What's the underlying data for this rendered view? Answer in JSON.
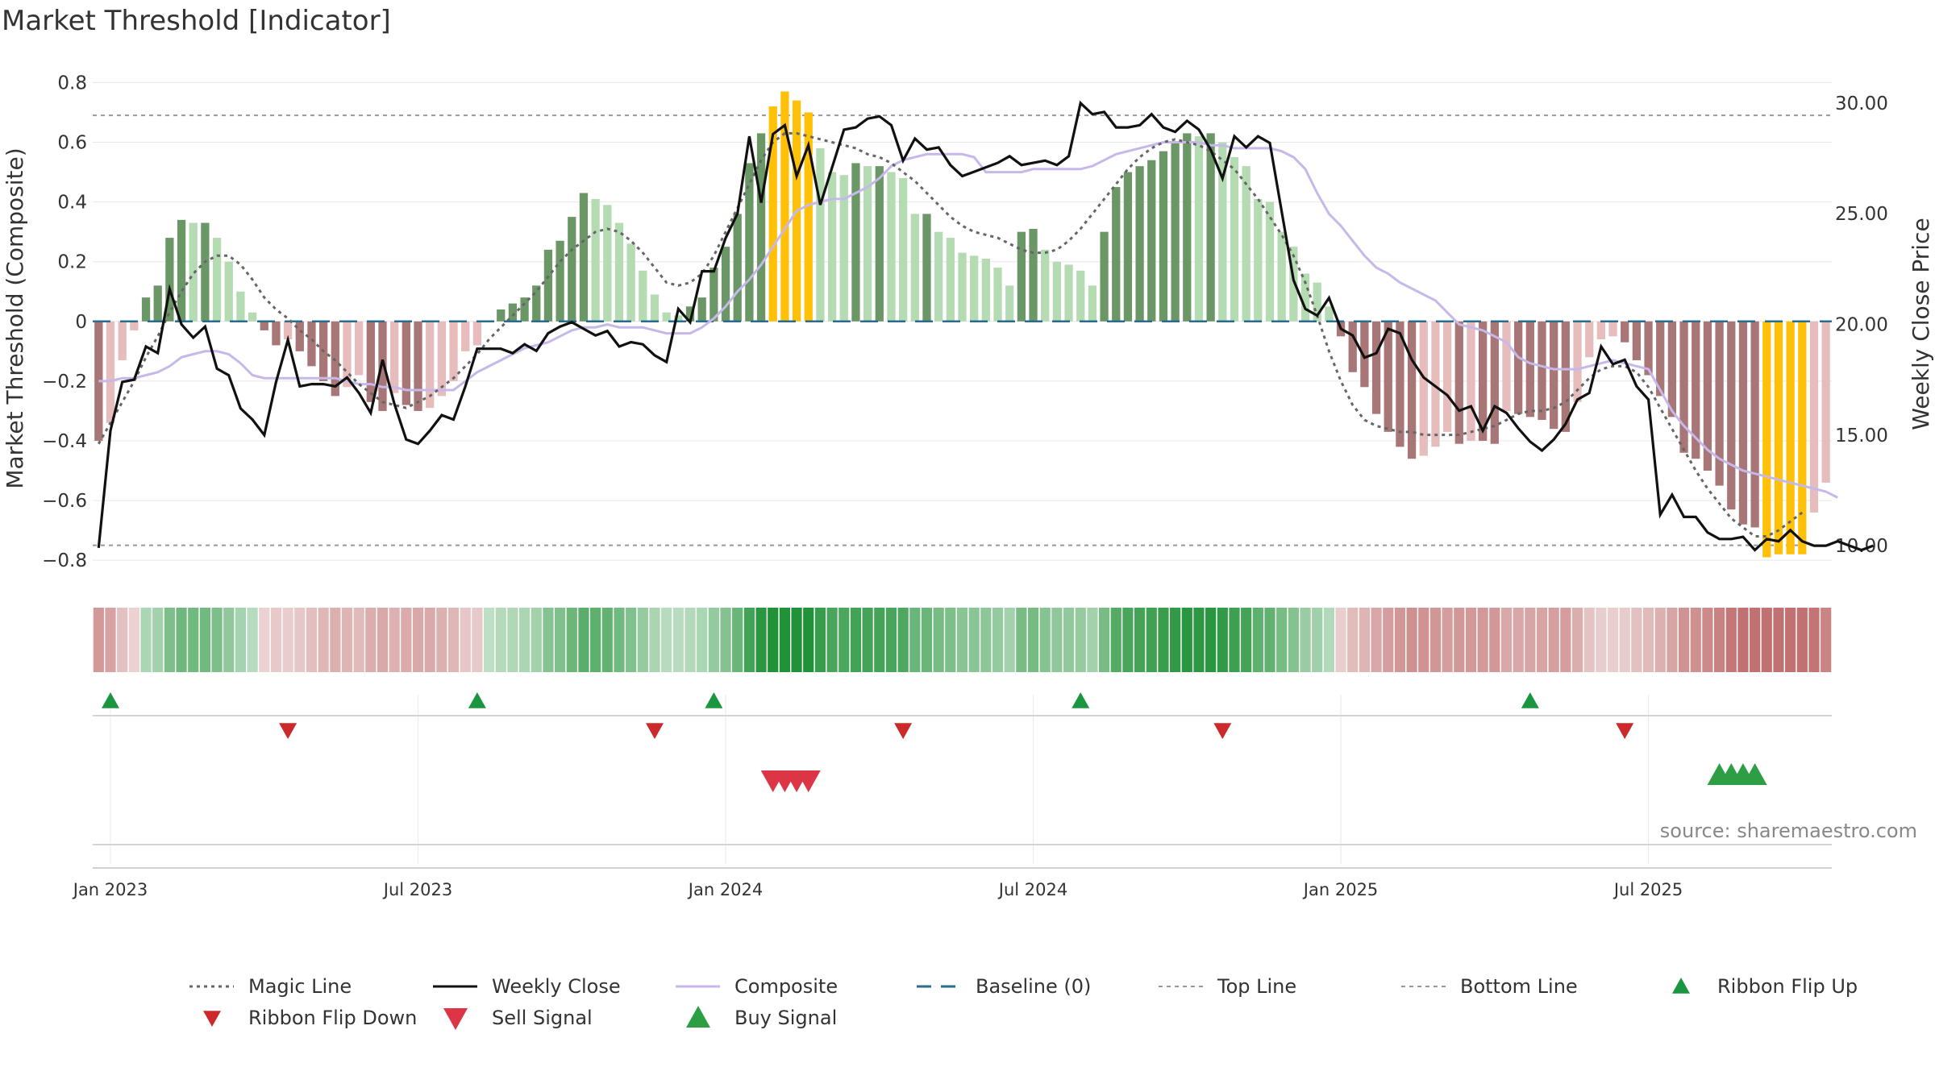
{
  "chart_data": {
    "type": "bar",
    "title": "Market Threshold [Indicator]",
    "ylabel": "Market Threshold (Composite)",
    "y2label": "Weekly Close Price",
    "source": "source: sharemaestro.com",
    "ylim": [
      -0.84,
      0.82
    ],
    "y2lim": [
      8.8,
      31.2
    ],
    "yticks": [
      {
        "v": 0.8,
        "label": "0.8"
      },
      {
        "v": 0.6,
        "label": "0.6"
      },
      {
        "v": 0.4,
        "label": "0.4"
      },
      {
        "v": 0.2,
        "label": "0.2"
      },
      {
        "v": 0,
        "label": "0"
      },
      {
        "v": -0.2,
        "label": "−0.2"
      },
      {
        "v": -0.4,
        "label": "−0.4"
      },
      {
        "v": -0.6,
        "label": "−0.6"
      },
      {
        "v": -0.8,
        "label": "−0.8"
      }
    ],
    "y2ticks": [
      {
        "v": 30,
        "label": "30.00"
      },
      {
        "v": 25,
        "label": "25.00"
      },
      {
        "v": 20,
        "label": "20.00"
      },
      {
        "v": 15,
        "label": "15.00"
      },
      {
        "v": 10,
        "label": "10.00"
      }
    ],
    "xticks": [
      {
        "i": 1,
        "label": "Jan 2023"
      },
      {
        "i": 27,
        "label": "Jul 2023"
      },
      {
        "i": 53,
        "label": "Jan 2024"
      },
      {
        "i": 79,
        "label": "Jul 2024"
      },
      {
        "i": 105,
        "label": "Jan 2025"
      },
      {
        "i": 131,
        "label": "Jul 2025"
      }
    ],
    "top_line": 0.69,
    "bottom_line": -0.75,
    "baseline": 0,
    "composite": [
      -0.4,
      -0.34,
      -0.13,
      -0.03,
      0.08,
      0.12,
      0.28,
      0.34,
      0.33,
      0.33,
      0.28,
      0.2,
      0.1,
      0.03,
      -0.03,
      -0.08,
      -0.06,
      -0.1,
      -0.15,
      -0.2,
      -0.25,
      -0.22,
      -0.18,
      -0.27,
      -0.3,
      -0.24,
      -0.28,
      -0.3,
      -0.29,
      -0.25,
      -0.2,
      -0.1,
      -0.08,
      0.0,
      0.04,
      0.06,
      0.08,
      0.12,
      0.24,
      0.27,
      0.35,
      0.43,
      0.41,
      0.39,
      0.33,
      0.26,
      0.17,
      0.09,
      0.03,
      0.02,
      0.05,
      0.08,
      0.18,
      0.25,
      0.36,
      0.53,
      0.63,
      0.72,
      0.77,
      0.74,
      0.7,
      0.58,
      0.5,
      0.49,
      0.53,
      0.52,
      0.52,
      0.5,
      0.48,
      0.36,
      0.36,
      0.3,
      0.28,
      0.23,
      0.22,
      0.21,
      0.18,
      0.12,
      0.3,
      0.31,
      0.24,
      0.2,
      0.19,
      0.17,
      0.12,
      0.3,
      0.45,
      0.5,
      0.52,
      0.54,
      0.57,
      0.6,
      0.63,
      0.62,
      0.63,
      0.6,
      0.55,
      0.52,
      0.41,
      0.4,
      0.3,
      0.25,
      0.16,
      0.13,
      0.05,
      -0.05,
      -0.17,
      -0.22,
      -0.31,
      -0.37,
      -0.42,
      -0.46,
      -0.45,
      -0.42,
      -0.37,
      -0.41,
      -0.4,
      -0.4,
      -0.41,
      -0.3,
      -0.31,
      -0.32,
      -0.33,
      -0.36,
      -0.37,
      -0.27,
      -0.12,
      -0.06,
      -0.05,
      -0.07,
      -0.13,
      -0.18,
      -0.25,
      -0.32,
      -0.44,
      -0.46,
      -0.5,
      -0.55,
      -0.63,
      -0.68,
      -0.69,
      -0.79,
      -0.78,
      -0.78,
      -0.78,
      -0.64,
      -0.54
    ],
    "magic_line": [
      -0.41,
      -0.34,
      -0.27,
      -0.2,
      -0.12,
      -0.05,
      0.03,
      0.1,
      0.16,
      0.2,
      0.22,
      0.22,
      0.19,
      0.14,
      0.08,
      0.04,
      0.01,
      -0.03,
      -0.06,
      -0.1,
      -0.13,
      -0.17,
      -0.21,
      -0.24,
      -0.27,
      -0.28,
      -0.29,
      -0.27,
      -0.25,
      -0.22,
      -0.19,
      -0.15,
      -0.11,
      -0.06,
      -0.02,
      0.02,
      0.06,
      0.1,
      0.15,
      0.2,
      0.24,
      0.27,
      0.3,
      0.31,
      0.3,
      0.27,
      0.23,
      0.18,
      0.13,
      0.12,
      0.13,
      0.16,
      0.22,
      0.3,
      0.38,
      0.46,
      0.54,
      0.6,
      0.63,
      0.63,
      0.62,
      0.61,
      0.6,
      0.59,
      0.58,
      0.56,
      0.55,
      0.53,
      0.5,
      0.47,
      0.43,
      0.39,
      0.35,
      0.32,
      0.3,
      0.29,
      0.28,
      0.26,
      0.24,
      0.23,
      0.23,
      0.24,
      0.27,
      0.31,
      0.36,
      0.41,
      0.46,
      0.51,
      0.55,
      0.58,
      0.6,
      0.61,
      0.6,
      0.59,
      0.57,
      0.54,
      0.51,
      0.46,
      0.41,
      0.35,
      0.29,
      0.22,
      0.13,
      0.02,
      -0.1,
      -0.2,
      -0.28,
      -0.33,
      -0.35,
      -0.36,
      -0.37,
      -0.37,
      -0.38,
      -0.38,
      -0.38,
      -0.38,
      -0.37,
      -0.36,
      -0.35,
      -0.33,
      -0.31,
      -0.3,
      -0.3,
      -0.29,
      -0.27,
      -0.23,
      -0.19,
      -0.16,
      -0.15,
      -0.15,
      -0.17,
      -0.22,
      -0.29,
      -0.36,
      -0.43,
      -0.5,
      -0.56,
      -0.61,
      -0.66,
      -0.69,
      -0.72,
      -0.72,
      -0.7,
      -0.67,
      -0.64
    ],
    "composite_line": [
      -0.2,
      -0.2,
      -0.19,
      -0.19,
      -0.18,
      -0.17,
      -0.15,
      -0.12,
      -0.11,
      -0.1,
      -0.1,
      -0.11,
      -0.14,
      -0.18,
      -0.19,
      -0.19,
      -0.19,
      -0.19,
      -0.19,
      -0.19,
      -0.19,
      -0.2,
      -0.21,
      -0.21,
      -0.22,
      -0.22,
      -0.23,
      -0.23,
      -0.23,
      -0.23,
      -0.23,
      -0.2,
      -0.17,
      -0.15,
      -0.13,
      -0.11,
      -0.09,
      -0.08,
      -0.07,
      -0.05,
      -0.03,
      -0.02,
      -0.02,
      -0.01,
      -0.02,
      -0.02,
      -0.02,
      -0.03,
      -0.04,
      -0.04,
      -0.04,
      -0.02,
      0.01,
      0.05,
      0.1,
      0.14,
      0.19,
      0.25,
      0.31,
      0.37,
      0.39,
      0.4,
      0.41,
      0.41,
      0.43,
      0.45,
      0.48,
      0.52,
      0.54,
      0.55,
      0.56,
      0.56,
      0.56,
      0.56,
      0.55,
      0.5,
      0.5,
      0.5,
      0.5,
      0.51,
      0.51,
      0.51,
      0.51,
      0.51,
      0.52,
      0.54,
      0.56,
      0.57,
      0.58,
      0.59,
      0.6,
      0.6,
      0.6,
      0.6,
      0.59,
      0.59,
      0.58,
      0.58,
      0.58,
      0.58,
      0.57,
      0.55,
      0.51,
      0.43,
      0.36,
      0.32,
      0.27,
      0.22,
      0.18,
      0.16,
      0.13,
      0.11,
      0.09,
      0.07,
      0.03,
      -0.01,
      -0.02,
      -0.03,
      -0.05,
      -0.07,
      -0.12,
      -0.14,
      -0.15,
      -0.16,
      -0.16,
      -0.16,
      -0.15,
      -0.14,
      -0.13,
      -0.14,
      -0.15,
      -0.16,
      -0.23,
      -0.3,
      -0.35,
      -0.39,
      -0.43,
      -0.46,
      -0.48,
      -0.5,
      -0.51,
      -0.52,
      -0.53,
      -0.54,
      -0.55,
      -0.56,
      -0.57,
      -0.59
    ],
    "weekly_close": [
      9.9,
      15.2,
      17.4,
      17.5,
      19.0,
      18.7,
      21.6,
      20.0,
      19.4,
      19.9,
      18.0,
      17.7,
      16.2,
      15.7,
      15.0,
      17.4,
      19.3,
      17.2,
      17.3,
      17.3,
      17.2,
      17.6,
      16.9,
      16.0,
      18.4,
      16.4,
      14.8,
      14.6,
      15.2,
      15.9,
      15.7,
      17.2,
      18.9,
      18.9,
      18.9,
      18.7,
      19.1,
      18.8,
      19.6,
      19.9,
      20.1,
      19.8,
      19.5,
      19.7,
      19.0,
      19.2,
      19.1,
      18.6,
      18.3,
      20.7,
      20.1,
      22.4,
      22.4,
      23.9,
      25.0,
      28.5,
      25.5,
      28.6,
      29.0,
      26.7,
      28.1,
      25.4,
      27.1,
      28.8,
      28.9,
      29.3,
      29.4,
      29.0,
      27.4,
      28.4,
      27.9,
      28.0,
      27.2,
      26.7,
      26.9,
      27.1,
      27.3,
      27.6,
      27.2,
      27.3,
      27.4,
      27.2,
      27.6,
      30.0,
      29.5,
      29.6,
      28.9,
      28.9,
      29.0,
      29.5,
      28.9,
      28.7,
      29.2,
      28.8,
      27.9,
      26.6,
      28.5,
      28.0,
      28.5,
      28.2,
      25.1,
      22.0,
      20.7,
      20.4,
      21.2,
      19.8,
      19.5,
      18.5,
      18.7,
      19.8,
      19.6,
      18.4,
      17.6,
      17.2,
      16.8,
      16.1,
      16.3,
      15.2,
      16.3,
      16.0,
      15.3,
      14.7,
      14.3,
      14.8,
      15.5,
      16.6,
      16.9,
      19.0,
      18.2,
      18.4,
      17.2,
      16.6,
      11.4,
      12.3,
      11.3,
      11.3,
      10.6,
      10.3,
      10.3,
      10.4,
      9.8,
      10.3,
      10.2,
      10.7,
      10.2,
      10.0,
      10.0,
      10.2,
      10.0,
      9.8,
      10.0
    ],
    "ribbon_flip_up": [
      1,
      32,
      52,
      83,
      121
    ],
    "ribbon_flip_down": [
      16,
      47,
      68,
      95,
      129
    ],
    "sell_signal": [
      57,
      58,
      59,
      60
    ],
    "buy_signal": [
      137,
      138,
      139,
      140
    ],
    "legend": [
      "Magic Line",
      "Weekly Close",
      "Composite",
      "Baseline (0)",
      "Top Line",
      "Bottom Line",
      "Ribbon Flip Up",
      "Ribbon Flip Down",
      "Sell Signal",
      "Buy Signal"
    ],
    "legend_placement": "bottom",
    "grid": true,
    "colors": {
      "dark_green": "#6b9767",
      "light_green": "#b5dbb2",
      "dark_red": "#a87676",
      "light_red": "#e6bcbc",
      "extreme": "#ffc107",
      "close": "#111111",
      "composite": "#c7b8ea",
      "magic": "#666666",
      "baseline": "#2b6c8e",
      "flip_up": "#1a9641",
      "flip_down": "#cc2a2a",
      "sell": "#dc3545",
      "buy": "#2e9e44"
    }
  }
}
